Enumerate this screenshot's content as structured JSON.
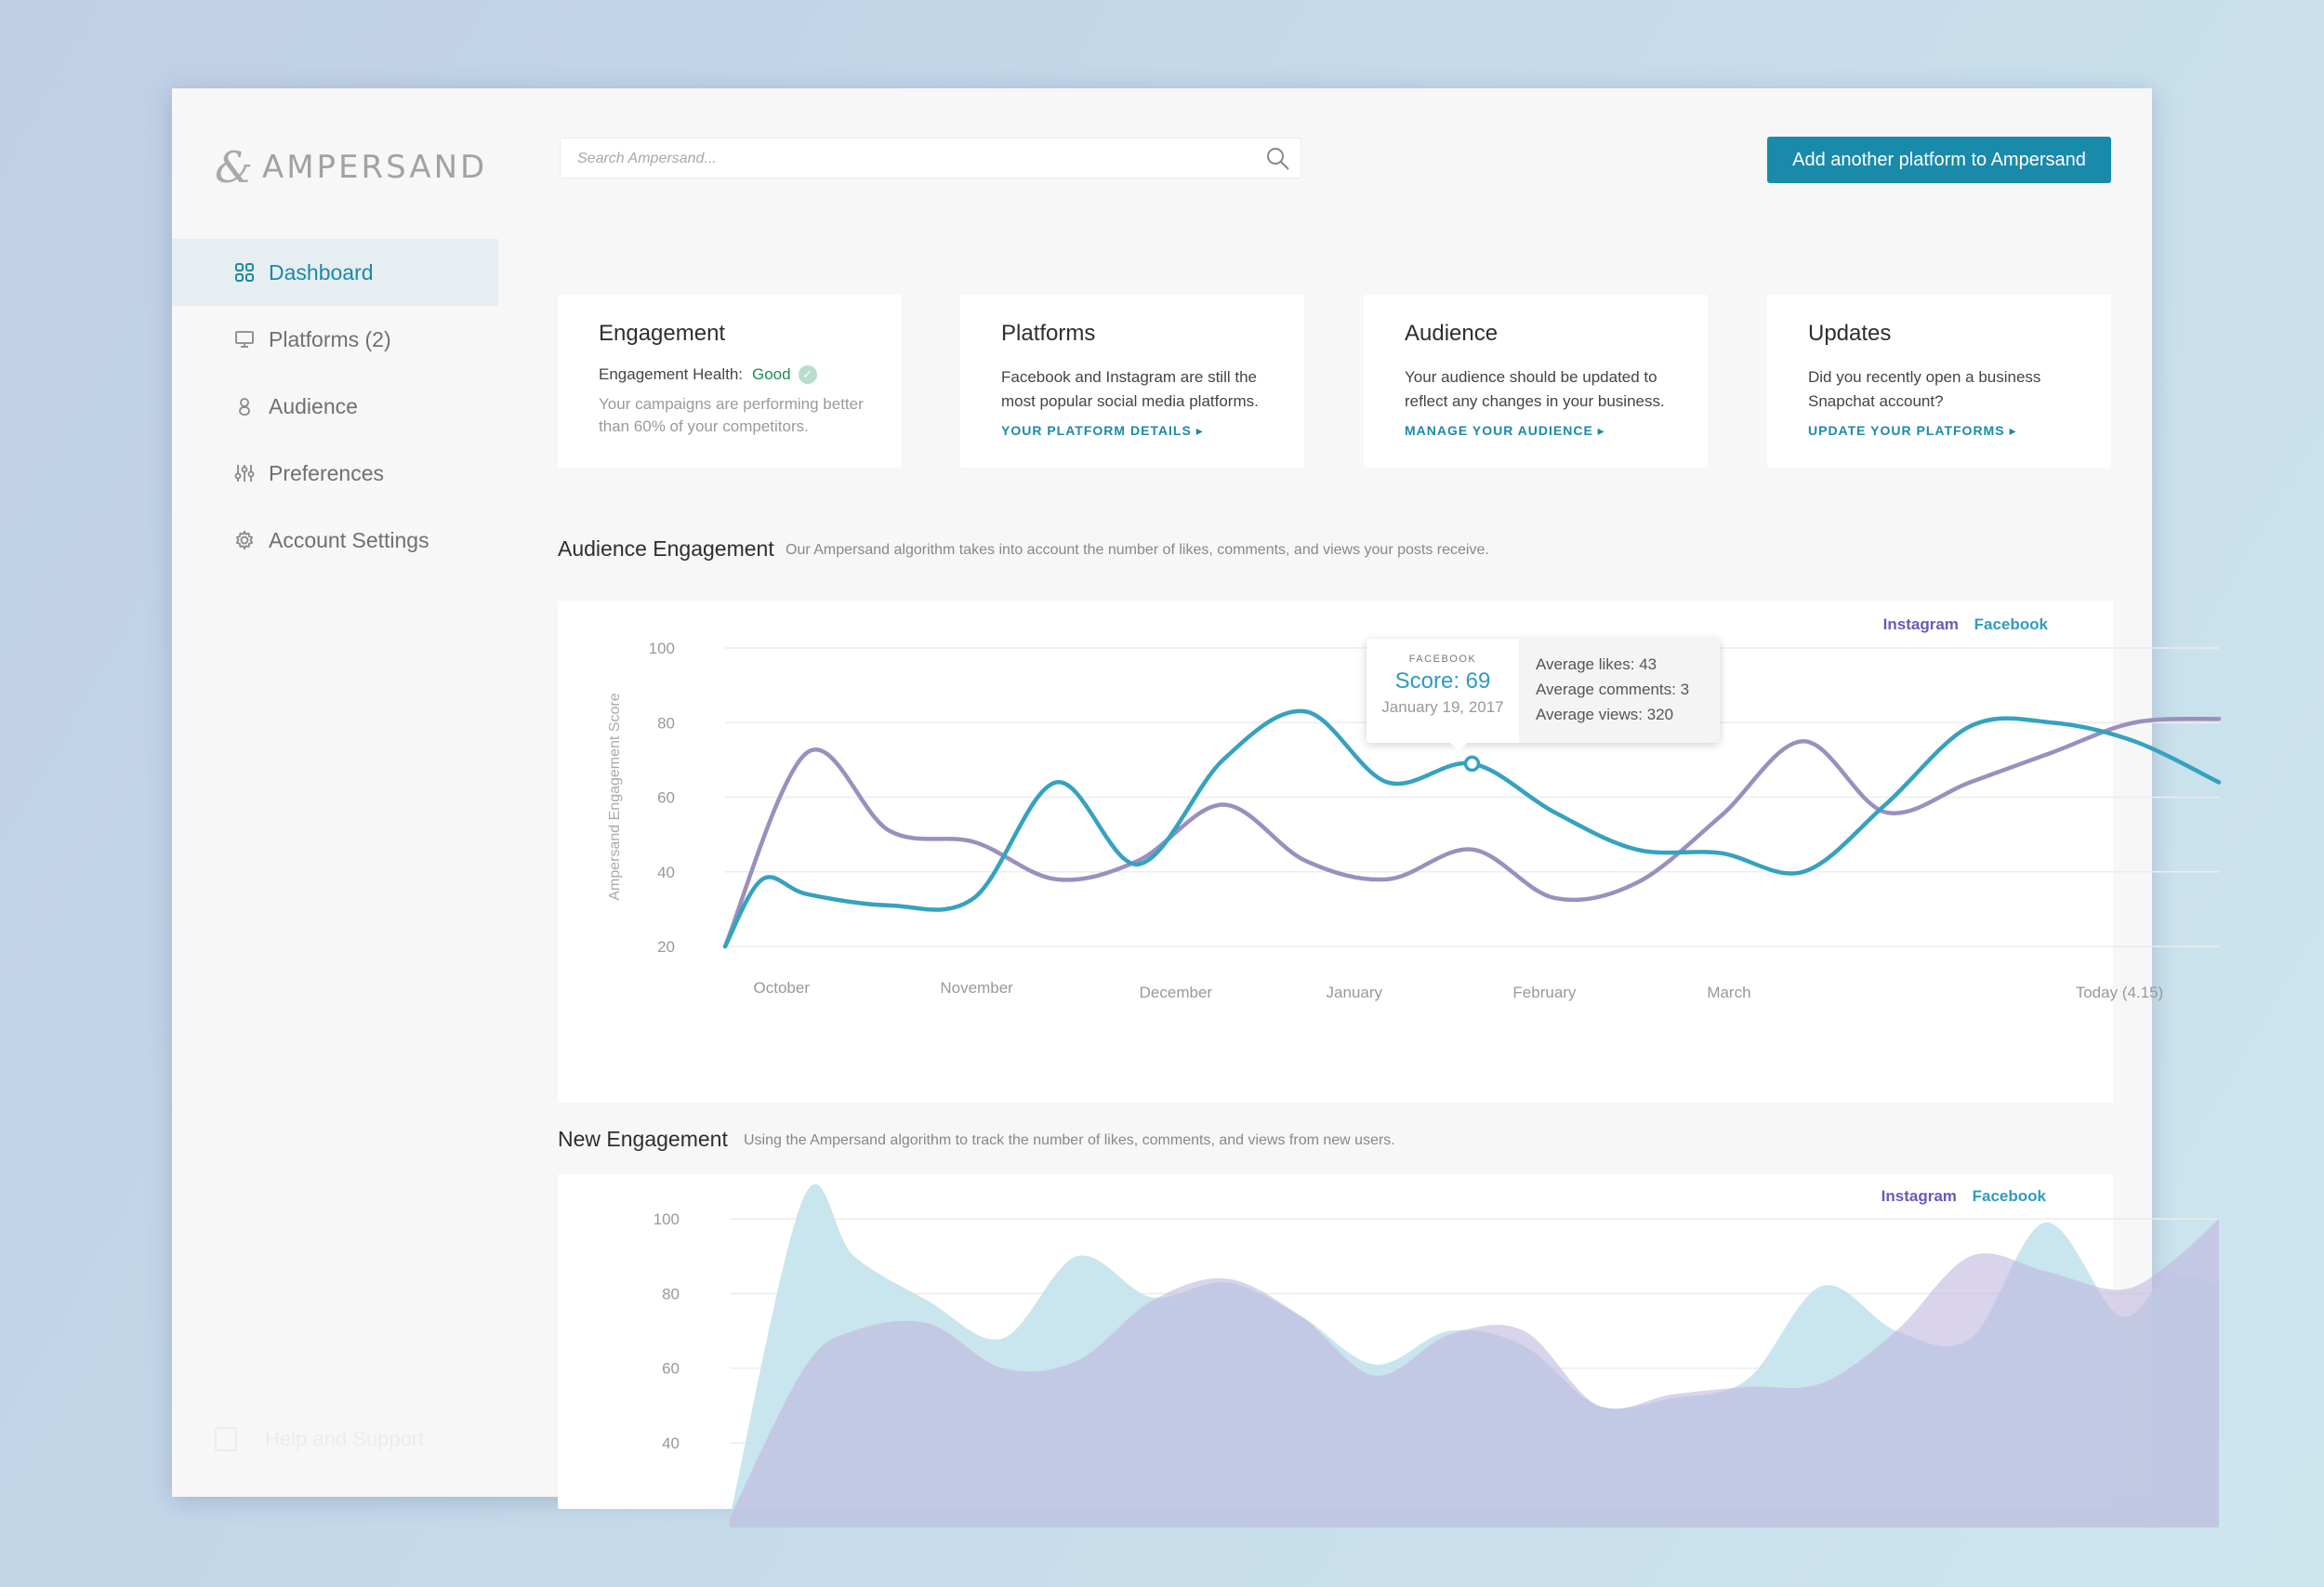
{
  "brand": {
    "mark": "&",
    "name": "AMPERSAND"
  },
  "search": {
    "placeholder": "Search Ampersand..."
  },
  "header": {
    "add_button": "Add another platform to Ampersand"
  },
  "sidebar": {
    "items": [
      {
        "label": "Dashboard",
        "icon": "grid-icon",
        "active": true
      },
      {
        "label": "Platforms (2)",
        "icon": "monitor-icon"
      },
      {
        "label": "Audience",
        "icon": "person-icon"
      },
      {
        "label": "Preferences",
        "icon": "sliders-icon"
      },
      {
        "label": "Account Settings",
        "icon": "gear-icon"
      }
    ],
    "help": "Help and Support"
  },
  "cards": {
    "engagement": {
      "title": "Engagement",
      "health_label": "Engagement Health:",
      "health_value": "Good",
      "text": "Your campaigns are performing better than 60% of your competitors."
    },
    "platforms": {
      "title": "Platforms",
      "text": "Facebook and Instagram are still the most popular social media platforms.",
      "link": "YOUR PLATFORM DETAILS ▸"
    },
    "audience": {
      "title": "Audience",
      "text": "Your audience should be updated to reflect any changes in your business.",
      "link": "MANAGE YOUR AUDIENCE ▸"
    },
    "updates": {
      "title": "Updates",
      "text": "Did you recently open a business Snapchat account?",
      "link": "UPDATE YOUR PLATFORMS ▸"
    }
  },
  "audience_engagement": {
    "title": "Audience Engagement",
    "subtitle": "Our Ampersand algorithm takes into account the number of likes, comments, and views your posts receive.",
    "legend": [
      "Instagram",
      "Facebook"
    ],
    "tooltip": {
      "platform": "FACEBOOK",
      "score": "Score: 69",
      "date": "January 19, 2017",
      "likes": "Average likes: 43",
      "comments": "Average comments: 3",
      "views": "Average views: 320"
    }
  },
  "new_engagement": {
    "title": "New Engagement",
    "subtitle": "Using the Ampersand algorithm to track the number of likes, comments, and views from new users.",
    "legend": [
      "Instagram",
      "Facebook"
    ]
  },
  "colors": {
    "accent": "#1a8aaa",
    "instagram": "#9b8fbf",
    "facebook": "#35a2bf",
    "instagram_fill": "#bfb6de",
    "facebook_fill": "#bfe1ea"
  },
  "chart_data": [
    {
      "type": "line",
      "ylabel": "Ampersand Engagement Score",
      "xlabel": "",
      "ylim": [
        20,
        100
      ],
      "yticks": [
        100,
        80,
        60,
        40,
        20
      ],
      "grid": true,
      "legend_position": "top-right",
      "xtick_labels": [
        "October",
        "November",
        "December",
        "January",
        "February",
        "March",
        "Today (4.15)"
      ],
      "series": [
        {
          "name": "Instagram",
          "x": [
            0,
            0.33,
            0.66,
            1.0,
            1.33,
            1.66,
            2.0,
            2.33,
            2.66,
            3.0,
            3.33,
            3.66,
            4.0,
            4.33,
            4.66,
            5.0,
            5.33,
            5.66,
            6.0
          ],
          "values": [
            20,
            72,
            51,
            48,
            38,
            43,
            58,
            43,
            38,
            46,
            33,
            37,
            55,
            75,
            56,
            64,
            72,
            80,
            81
          ]
        },
        {
          "name": "Facebook",
          "x": [
            0,
            0.15,
            0.33,
            0.66,
            1.0,
            1.33,
            1.66,
            2.0,
            2.33,
            2.66,
            3.0,
            3.33,
            3.66,
            4.0,
            4.33,
            4.66,
            5.0,
            5.33,
            5.66,
            6.0
          ],
          "values": [
            20,
            38,
            34,
            31,
            33,
            64,
            42,
            70,
            83,
            64,
            69,
            56,
            46,
            45,
            40,
            58,
            79,
            80,
            75,
            64
          ]
        }
      ]
    },
    {
      "type": "area",
      "ylabel": "",
      "xlabel": "",
      "ylim": [
        30,
        100
      ],
      "yticks": [
        100,
        80,
        60,
        40
      ],
      "grid": true,
      "legend_position": "top-right",
      "series": [
        {
          "name": "Facebook",
          "x": [
            0,
            0.3,
            0.5,
            0.8,
            1.1,
            1.4,
            1.7,
            2.0,
            2.3,
            2.6,
            2.9,
            3.2,
            3.5,
            3.8,
            4.1,
            4.4,
            4.7,
            5.0,
            5.3,
            5.6,
            5.8,
            6.0
          ],
          "values": [
            20,
            106,
            90,
            78,
            68,
            90,
            79,
            83,
            74,
            61,
            70,
            66,
            50,
            52,
            57,
            82,
            70,
            68,
            99,
            74,
            85,
            82
          ]
        },
        {
          "name": "Instagram",
          "x": [
            0,
            0.3,
            0.5,
            0.8,
            1.1,
            1.4,
            1.7,
            2.0,
            2.3,
            2.6,
            2.9,
            3.2,
            3.5,
            3.8,
            4.1,
            4.4,
            4.7,
            5.0,
            5.3,
            5.6,
            5.8,
            6.0
          ],
          "values": [
            20,
            60,
            70,
            72,
            60,
            62,
            78,
            84,
            74,
            58,
            69,
            70,
            50,
            53,
            55,
            56,
            70,
            90,
            86,
            81,
            88,
            100
          ]
        }
      ]
    }
  ]
}
